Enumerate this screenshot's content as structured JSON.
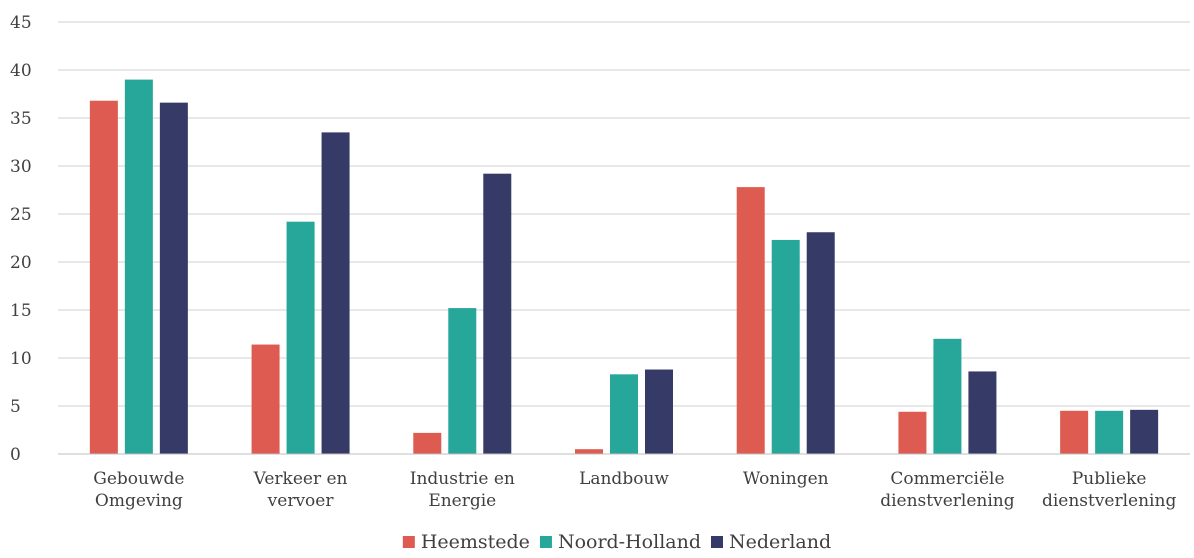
{
  "chart_data": {
    "type": "bar",
    "categories": [
      [
        "Gebouwde",
        "Omgeving"
      ],
      [
        "Verkeer en",
        "vervoer"
      ],
      [
        "Industrie en",
        "Energie"
      ],
      [
        "Landbouw"
      ],
      [
        "Woningen"
      ],
      [
        "Commerciële",
        "dienstverlening"
      ],
      [
        "Publieke",
        "dienstverlening"
      ]
    ],
    "series": [
      {
        "name": "Heemstede",
        "color": "#dd5b50",
        "values": [
          36.8,
          11.4,
          2.2,
          0.5,
          27.8,
          4.4,
          4.5
        ]
      },
      {
        "name": "Noord-Holland",
        "color": "#27a69a",
        "values": [
          39.0,
          24.2,
          15.2,
          8.3,
          22.3,
          12.0,
          4.5
        ]
      },
      {
        "name": "Nederland",
        "color": "#353a66",
        "values": [
          36.6,
          33.5,
          29.2,
          8.8,
          23.1,
          8.6,
          4.6
        ]
      }
    ],
    "yticks": [
      "0",
      "5",
      "10",
      "15",
      "20",
      "25",
      "30",
      "35",
      "40",
      "45"
    ],
    "ylim": [
      0,
      45
    ],
    "grid": true,
    "legend": "bottom-center"
  }
}
